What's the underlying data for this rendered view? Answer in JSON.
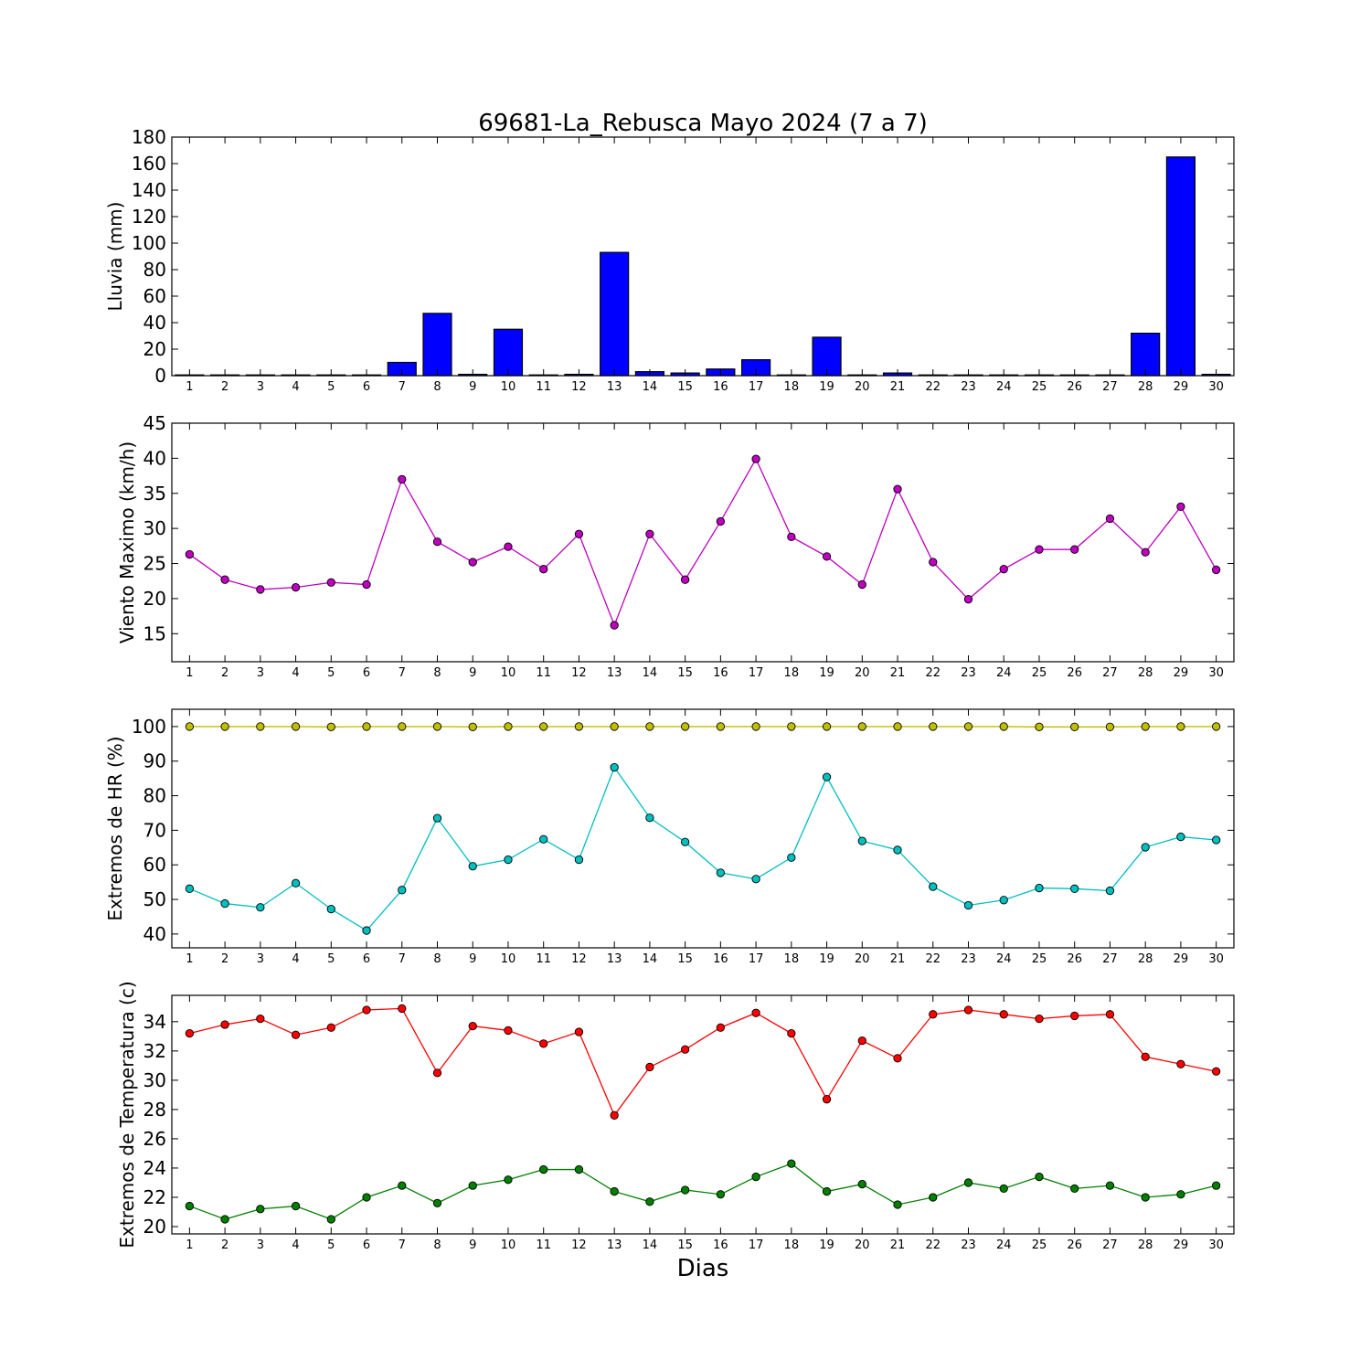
{
  "title": "69681-La_Rebusca Mayo 2024  (7 a 7)",
  "xlabel": "Dias",
  "chart_data": [
    {
      "type": "bar",
      "ylabel": "Lluvia (mm)",
      "ylim": [
        0,
        180
      ],
      "yticks": [
        0,
        20,
        40,
        60,
        80,
        100,
        120,
        140,
        160,
        180
      ],
      "x": [
        1,
        2,
        3,
        4,
        5,
        6,
        7,
        8,
        9,
        10,
        11,
        12,
        13,
        14,
        15,
        16,
        17,
        18,
        19,
        20,
        21,
        22,
        23,
        24,
        25,
        26,
        27,
        28,
        29,
        30
      ],
      "series": [
        {
          "color": "#0000ff",
          "values": [
            0,
            0,
            0,
            0,
            0,
            0,
            10,
            47,
            1,
            35,
            0,
            1,
            93,
            3,
            2,
            5,
            12,
            0,
            29,
            0,
            2,
            0,
            0,
            0,
            0,
            0,
            0,
            32,
            165,
            1
          ]
        }
      ]
    },
    {
      "type": "line",
      "ylabel": "Viento Maximo (km/h)",
      "ylim": [
        11,
        45
      ],
      "yticks": [
        15,
        20,
        25,
        30,
        35,
        40,
        45
      ],
      "x": [
        1,
        2,
        3,
        4,
        5,
        6,
        7,
        8,
        9,
        10,
        11,
        12,
        13,
        14,
        15,
        16,
        17,
        18,
        19,
        20,
        21,
        22,
        23,
        24,
        25,
        26,
        27,
        28,
        29,
        30
      ],
      "series": [
        {
          "color": "#bf00bf",
          "values": [
            26.3,
            22.7,
            21.3,
            21.6,
            22.3,
            22.0,
            37.0,
            28.1,
            25.2,
            27.4,
            24.2,
            29.2,
            16.2,
            29.2,
            22.7,
            31.0,
            39.9,
            28.8,
            26.0,
            22.0,
            35.6,
            25.2,
            19.9,
            24.2,
            27.0,
            27.0,
            31.4,
            26.6,
            33.1,
            24.1
          ]
        }
      ]
    },
    {
      "type": "line",
      "ylabel": "Extremos de HR (%)",
      "ylim": [
        36,
        105
      ],
      "yticks": [
        40,
        50,
        60,
        70,
        80,
        90,
        100
      ],
      "x": [
        1,
        2,
        3,
        4,
        5,
        6,
        7,
        8,
        9,
        10,
        11,
        12,
        13,
        14,
        15,
        16,
        17,
        18,
        19,
        20,
        21,
        22,
        23,
        24,
        25,
        26,
        27,
        28,
        29,
        30
      ],
      "series": [
        {
          "color": "#bfbf00",
          "values": [
            100,
            100,
            100,
            100,
            99.9,
            100,
            100,
            100,
            99.9,
            100,
            100,
            100,
            100,
            100,
            100,
            100,
            100,
            100,
            100,
            100,
            100,
            100,
            100,
            100,
            99.9,
            99.9,
            99.9,
            100,
            100,
            100
          ]
        },
        {
          "color": "#00bfbf",
          "values": [
            53.1,
            48.8,
            47.7,
            54.7,
            47.2,
            41.0,
            52.7,
            73.5,
            59.6,
            61.5,
            67.4,
            61.5,
            88.2,
            73.6,
            66.6,
            57.7,
            55.9,
            62.1,
            85.4,
            66.9,
            64.3,
            53.7,
            48.3,
            49.8,
            53.3,
            53.1,
            52.5,
            65.1,
            68.1,
            67.2
          ]
        }
      ]
    },
    {
      "type": "line",
      "ylabel": "Extremos de Temperatura (c)",
      "ylim": [
        19.5,
        35.8
      ],
      "yticks": [
        20,
        22,
        24,
        26,
        28,
        30,
        32,
        34
      ],
      "x": [
        1,
        2,
        3,
        4,
        5,
        6,
        7,
        8,
        9,
        10,
        11,
        12,
        13,
        14,
        15,
        16,
        17,
        18,
        19,
        20,
        21,
        22,
        23,
        24,
        25,
        26,
        27,
        28,
        29,
        30
      ],
      "series": [
        {
          "color": "#ff0000",
          "values": [
            33.2,
            33.8,
            34.2,
            33.1,
            33.6,
            34.8,
            34.9,
            30.5,
            33.7,
            33.4,
            32.5,
            33.3,
            27.6,
            30.9,
            32.1,
            33.6,
            34.6,
            33.2,
            28.7,
            32.7,
            31.5,
            34.5,
            34.8,
            34.5,
            34.2,
            34.4,
            34.5,
            31.6,
            31.1,
            30.6
          ]
        },
        {
          "color": "#007f00",
          "values": [
            21.4,
            20.5,
            21.2,
            21.4,
            20.5,
            22.0,
            22.8,
            21.6,
            22.8,
            23.2,
            23.9,
            23.9,
            22.4,
            21.7,
            22.5,
            22.2,
            23.4,
            24.3,
            22.4,
            22.9,
            21.5,
            22.0,
            23.0,
            22.6,
            23.4,
            22.6,
            22.8,
            22.0,
            22.2,
            22.8
          ]
        }
      ]
    }
  ]
}
